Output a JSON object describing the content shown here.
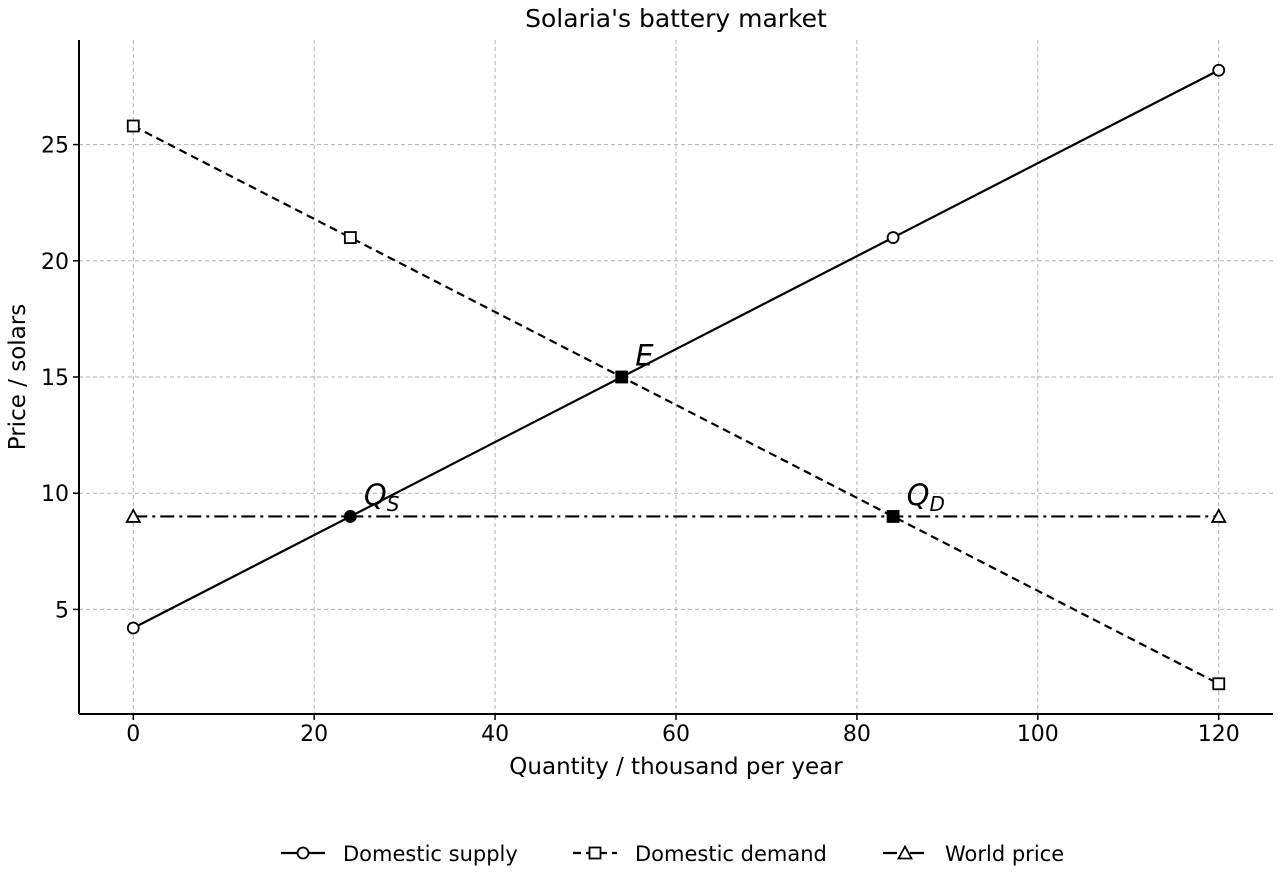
{
  "chart_data": {
    "type": "line",
    "title": "Solaria's battery market",
    "xlabel": "Quantity / thousand per year",
    "ylabel": "Price / solars",
    "xlim": [
      -6,
      126
    ],
    "ylim": [
      0.5,
      29.5
    ],
    "xticks": [
      0,
      20,
      40,
      60,
      80,
      100,
      120
    ],
    "yticks": [
      5,
      10,
      15,
      20,
      25
    ],
    "grid": true,
    "legend_position": "bottom-center",
    "series": [
      {
        "name": "Domestic supply",
        "style": "solid",
        "marker": "circle",
        "x": [
          0,
          84,
          120
        ],
        "y": [
          4.2,
          21.0,
          28.2
        ]
      },
      {
        "name": "Domestic demand",
        "style": "dashed",
        "marker": "square",
        "x": [
          0,
          24,
          120
        ],
        "y": [
          25.8,
          21.0,
          1.8
        ]
      },
      {
        "name": "World price",
        "style": "dashdot",
        "marker": "triangle",
        "x": [
          0,
          120
        ],
        "y": [
          9,
          9
        ]
      }
    ],
    "highlight_points": [
      {
        "x": 24,
        "y": 9,
        "marker": "circle"
      },
      {
        "x": 54,
        "y": 15,
        "marker": "square"
      },
      {
        "x": 84,
        "y": 9,
        "marker": "square"
      }
    ],
    "annotations": [
      {
        "text": "E",
        "sub": "",
        "x": 55.5,
        "y": 15.5
      },
      {
        "text": "Q",
        "sub": "S",
        "x": 25.5,
        "y": 9.5
      },
      {
        "text": "Q",
        "sub": "D",
        "x": 85.5,
        "y": 9.5
      }
    ]
  }
}
